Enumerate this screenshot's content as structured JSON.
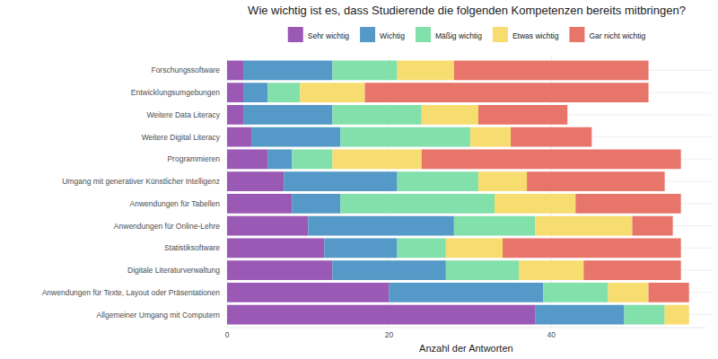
{
  "chart_data": {
    "type": "bar",
    "orientation": "horizontal",
    "stacked": true,
    "grid": true,
    "legend": "top",
    "title": "Wie wichtig ist es, dass Studierende die folgenden Kompetenzen bereits mitbringen?",
    "x_label": "Anzahl der Antworten",
    "categories": [
      "Forschungssoftware",
      "Entwicklungsumgebungen",
      "Weitere Data Literacy",
      "Weitere Digital Literacy",
      "Programmieren",
      "Umgang mit generativer Künstlicher Intelligenz",
      "Anwendungen für Tabellen",
      "Anwendungen für Online-Lehre",
      "Statistiksoftware",
      "Digitale Literaturverwaltung",
      "Anwendungen für Texte, Layout oder Präsentationen",
      "Allgemeiner Umgang mit Computern"
    ],
    "series": [
      {
        "name": "Sehr wichtig",
        "color": "#9b59b6",
        "values": [
          2,
          2,
          2,
          3,
          5,
          7,
          8,
          10,
          12,
          13,
          20,
          38
        ]
      },
      {
        "name": "Wichtig",
        "color": "#5499c7",
        "values": [
          11,
          3,
          11,
          11,
          3,
          14,
          6,
          18,
          9,
          14,
          19,
          11
        ]
      },
      {
        "name": "Mäßig wichtig",
        "color": "#82e0aa",
        "values": [
          8,
          4,
          11,
          16,
          5,
          10,
          19,
          10,
          6,
          9,
          8,
          5
        ]
      },
      {
        "name": "Etwas wichtig",
        "color": "#f7dc6f",
        "values": [
          7,
          8,
          7,
          5,
          11,
          6,
          10,
          12,
          7,
          8,
          5,
          3
        ]
      },
      {
        "name": "Gar nicht wichtig",
        "color": "#e8756a",
        "values": [
          24,
          35,
          11,
          10,
          32,
          17,
          13,
          5,
          22,
          12,
          5,
          0
        ]
      }
    ],
    "xlim": [
      0,
      59
    ],
    "xticks": [
      0,
      20,
      40
    ]
  }
}
